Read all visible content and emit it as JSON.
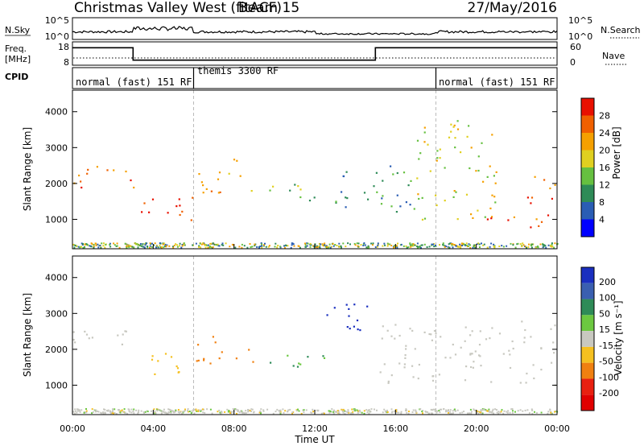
{
  "header": {
    "station": "Christmas Valley West (fitACF)",
    "beam": "Beam 15",
    "date": "27/May/2016"
  },
  "strips": {
    "nsky_label": "N.Sky",
    "nsky_ticks": [
      "10^5",
      "10^0"
    ],
    "nsearch_label": "N.Search",
    "freq_label": "Freq.",
    "freq_unit": "[MHz]",
    "freq_ticks": [
      "18",
      "8"
    ],
    "nave_ticks": [
      "60",
      "0"
    ],
    "nave_label": "Nave",
    "cpid_label": "CPID",
    "cpid_segments": [
      {
        "label": "normal (fast) 151 RF",
        "start_h": 0,
        "end_h": 6
      },
      {
        "label": "themis 3300 RF",
        "start_h": 6,
        "end_h": 18
      },
      {
        "label": "normal (fast) 151 RF",
        "start_h": 18,
        "end_h": 24
      }
    ]
  },
  "chart_data": [
    {
      "type": "heatmap",
      "panel": "power",
      "ylabel": "Slant Range [km]",
      "yticks": [
        "1000",
        "2000",
        "3000",
        "4000"
      ],
      "ylim": [
        180,
        4600
      ],
      "xlim_hours": [
        0,
        24
      ],
      "colorbar_label": "Power [dB]",
      "colorbar_ticks": [
        "4",
        "8",
        "12",
        "16",
        "20",
        "24",
        "28"
      ],
      "colorbar_colors": [
        "#0000ff",
        "#2a5db4",
        "#2e8b57",
        "#66c040",
        "#e0d020",
        "#f5a000",
        "#f06000",
        "#e81000"
      ],
      "scatter_bands_h_km_db": [
        {
          "start_h": 0.0,
          "end_h": 3.0,
          "km_from": 1900,
          "km_to": 2600,
          "db": 26
        },
        {
          "start_h": 3.0,
          "end_h": 6.0,
          "km_from": 1000,
          "km_to": 1700,
          "db": 28
        },
        {
          "start_h": 6.0,
          "end_h": 8.5,
          "km_from": 1700,
          "km_to": 2700,
          "db": 24
        },
        {
          "start_h": 8.5,
          "end_h": 12.0,
          "km_from": 1500,
          "km_to": 2000,
          "db": 14
        },
        {
          "start_h": 13.0,
          "end_h": 17.0,
          "km_from": 1200,
          "km_to": 2600,
          "db": 10
        },
        {
          "start_h": 17.0,
          "end_h": 21.0,
          "km_from": 1000,
          "km_to": 3800,
          "db": 18
        },
        {
          "start_h": 20.0,
          "end_h": 22.0,
          "km_from": 700,
          "km_to": 1100,
          "db": 28
        },
        {
          "start_h": 22.5,
          "end_h": 24.0,
          "km_from": 700,
          "km_to": 2300,
          "db": 26
        }
      ]
    },
    {
      "type": "heatmap",
      "panel": "velocity",
      "ylabel": "Slant Range [km]",
      "yticks": [
        "1000",
        "2000",
        "3000",
        "4000"
      ],
      "ylim": [
        180,
        4600
      ],
      "xlim_hours": [
        0,
        24
      ],
      "xticks": [
        "00:00",
        "04:00",
        "08:00",
        "12:00",
        "16:00",
        "20:00",
        "00:00"
      ],
      "xlabel": "Time UT",
      "colorbar_label": "Velocity [m s⁻¹]",
      "colorbar_ticks": [
        "200",
        "100",
        "50",
        "15",
        "-15",
        "-50",
        "-100",
        "-200"
      ],
      "colorbar_colors": [
        "#1a2fbf",
        "#3a5fb0",
        "#2e8b57",
        "#6cc840",
        "#c8c8c0",
        "#f5c020",
        "#f08010",
        "#e82010",
        "#e00000"
      ],
      "scatter_bands_h_km_velocity": [
        {
          "start_h": 0.0,
          "end_h": 3.0,
          "km_from": 1900,
          "km_to": 2600,
          "v": 0
        },
        {
          "start_h": 3.0,
          "end_h": 6.0,
          "km_from": 1300,
          "km_to": 1900,
          "v": -40
        },
        {
          "start_h": 6.0,
          "end_h": 9.0,
          "km_from": 1600,
          "km_to": 2400,
          "v": -60
        },
        {
          "start_h": 9.0,
          "end_h": 13.0,
          "km_from": 1500,
          "km_to": 1900,
          "v": 30
        },
        {
          "start_h": 12.5,
          "end_h": 15.0,
          "km_from": 2400,
          "km_to": 3300,
          "v": 200
        },
        {
          "start_h": 15.0,
          "end_h": 24.0,
          "km_from": 1000,
          "km_to": 2800,
          "v": 0
        }
      ]
    }
  ]
}
